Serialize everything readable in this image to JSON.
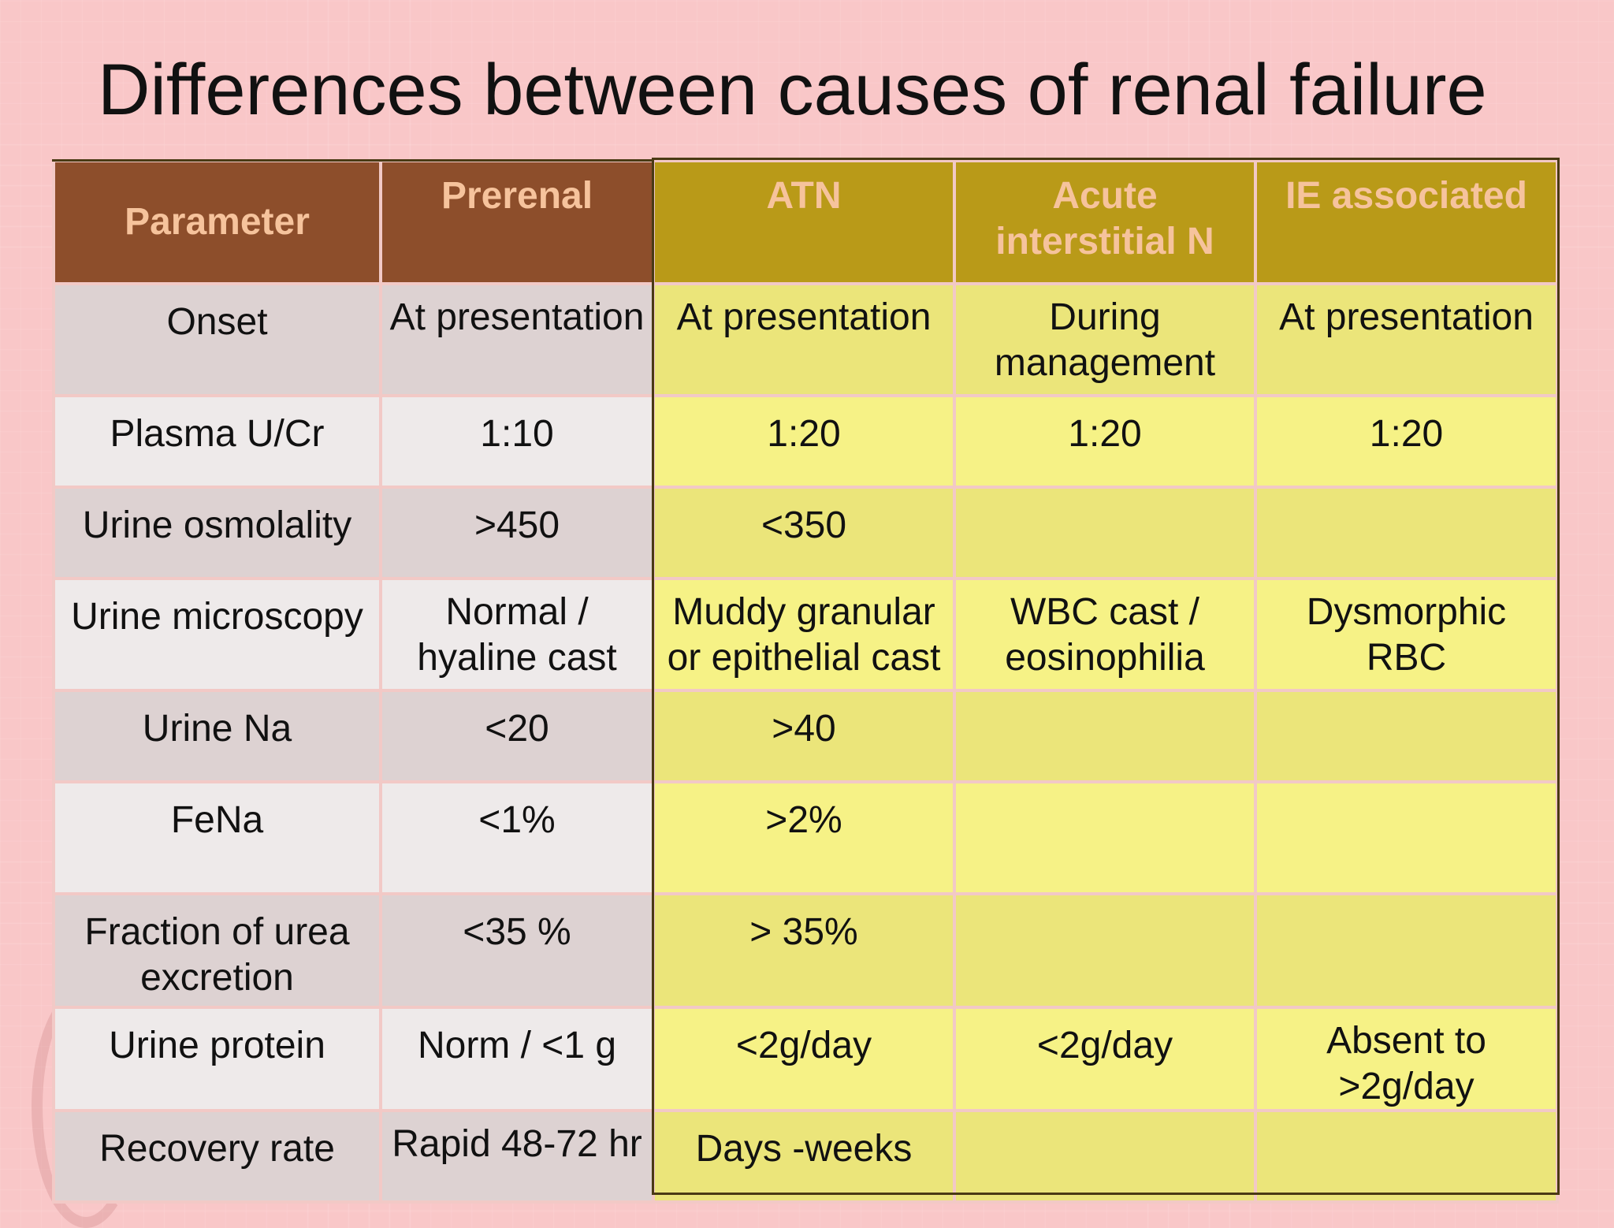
{
  "slide": {
    "title": "Differences between causes of renal failure"
  },
  "table": {
    "headers": [
      {
        "key": "parameter",
        "label": "Parameter"
      },
      {
        "key": "prerenal",
        "label": "Prerenal"
      },
      {
        "key": "atn",
        "label": "ATN"
      },
      {
        "key": "ain",
        "label": "Acute interstitial N"
      },
      {
        "key": "ie",
        "label": "IE associated"
      }
    ],
    "rows": [
      {
        "parameter": "Onset",
        "prerenal": "At presentation",
        "atn": "At presentation",
        "ain": "During management",
        "ie": "At presentation"
      },
      {
        "parameter": "Plasma U/Cr",
        "prerenal": "1:10",
        "atn": "1:20",
        "ain": "1:20",
        "ie": "1:20"
      },
      {
        "parameter": "Urine osmolality",
        "prerenal": ">450",
        "atn": "<350",
        "ain": "",
        "ie": ""
      },
      {
        "parameter": "Urine microscopy",
        "prerenal": "Normal / hyaline cast",
        "atn": "Muddy granular or epithelial cast",
        "ain": "WBC cast / eosinophilia",
        "ie": "Dysmorphic RBC"
      },
      {
        "parameter": "Urine Na",
        "prerenal": "<20",
        "atn": ">40",
        "ain": "",
        "ie": ""
      },
      {
        "parameter": "FeNa",
        "prerenal": "<1%",
        "atn": ">2%",
        "ain": "",
        "ie": ""
      },
      {
        "parameter": "Fraction of urea excretion",
        "prerenal": "<35 %",
        "atn": "> 35%",
        "ain": "",
        "ie": ""
      },
      {
        "parameter": "Urine protein",
        "prerenal": "Norm / <1 g",
        "atn": "<2g/day",
        "ain": "<2g/day",
        "ie": "Absent to >2g/day"
      },
      {
        "parameter": "Recovery rate",
        "prerenal": "Rapid 48-72 hr",
        "atn": "Days -weeks",
        "ain": "",
        "ie": ""
      }
    ]
  },
  "colors": {
    "background": "#f9c7c8",
    "header_brown": "#8d4e2b",
    "header_gold": "#b99a18",
    "header_text": "#f6c39c",
    "highlight_red": "#d5141a",
    "highlight_orange": "#ee7a0e"
  }
}
